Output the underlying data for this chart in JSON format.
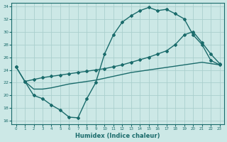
{
  "xlabel": "Humidex (Indice chaleur)",
  "bg_color": "#cce8e6",
  "grid_color": "#aacfcd",
  "line_color": "#1a6b6b",
  "xlim": [
    -0.5,
    23.5
  ],
  "ylim": [
    15.5,
    34.5
  ],
  "yticks": [
    16,
    18,
    20,
    22,
    24,
    26,
    28,
    30,
    32,
    34
  ],
  "xticks": [
    0,
    1,
    2,
    3,
    4,
    5,
    6,
    7,
    8,
    9,
    10,
    11,
    12,
    13,
    14,
    15,
    16,
    17,
    18,
    19,
    20,
    21,
    22,
    23
  ],
  "line_top": {
    "x": [
      0,
      1,
      2,
      3,
      4,
      5,
      6,
      7,
      8,
      9,
      10,
      11,
      12,
      13,
      14,
      15,
      16,
      17,
      18,
      19,
      20,
      21,
      22,
      23
    ],
    "y": [
      24.5,
      22.2,
      20.0,
      19.5,
      18.5,
      17.7,
      16.6,
      16.5,
      19.5,
      22.0,
      26.5,
      29.5,
      31.5,
      32.5,
      33.3,
      33.8,
      33.3,
      33.5,
      32.8,
      32.0,
      29.5,
      28.0,
      25.5,
      24.8
    ]
  },
  "line_mid": {
    "x": [
      0,
      1,
      2,
      3,
      4,
      5,
      6,
      7,
      8,
      9,
      10,
      11,
      12,
      13,
      14,
      15,
      16,
      17,
      18,
      19,
      20,
      21,
      22,
      23
    ],
    "y": [
      24.5,
      22.2,
      22.5,
      22.8,
      23.0,
      23.2,
      23.4,
      23.6,
      23.8,
      24.0,
      24.2,
      24.5,
      24.8,
      25.2,
      25.6,
      26.0,
      26.5,
      27.0,
      28.0,
      29.5,
      30.0,
      28.3,
      26.5,
      25.0
    ]
  },
  "line_bot": {
    "x": [
      1,
      2,
      3,
      4,
      5,
      6,
      7,
      8,
      9,
      10,
      11,
      12,
      13,
      14,
      15,
      16,
      17,
      18,
      19,
      20,
      21,
      22,
      23
    ],
    "y": [
      22.2,
      21.0,
      21.0,
      21.2,
      21.5,
      21.8,
      22.0,
      22.2,
      22.4,
      22.7,
      23.0,
      23.3,
      23.6,
      23.8,
      24.0,
      24.2,
      24.4,
      24.6,
      24.8,
      25.0,
      25.2,
      25.0,
      24.8
    ]
  }
}
